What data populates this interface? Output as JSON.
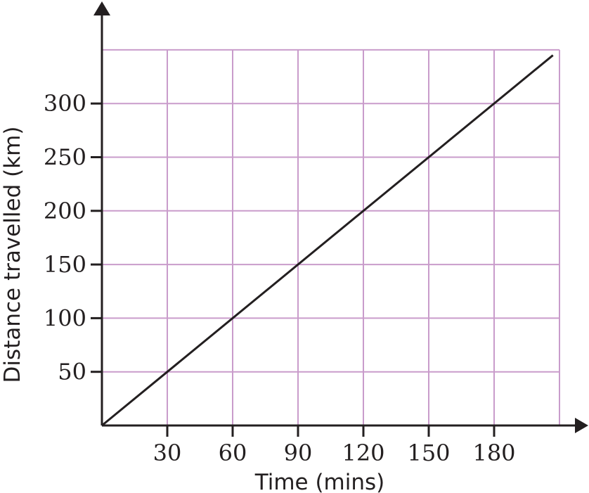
{
  "chart_data": {
    "type": "line",
    "xlabel": "Time (mins)",
    "ylabel": "Distance travelled (km)",
    "x_ticks": [
      30,
      60,
      90,
      120,
      150,
      180
    ],
    "y_ticks": [
      50,
      100,
      150,
      200,
      250,
      300
    ],
    "xlim": [
      0,
      210
    ],
    "ylim": [
      0,
      350
    ],
    "grid": true,
    "grid_color": "#c99ccb",
    "line_color": "#231f20",
    "axis_color": "#231f20",
    "series": [
      {
        "x": [
          0,
          207
        ],
        "y": [
          0,
          345
        ]
      }
    ]
  }
}
